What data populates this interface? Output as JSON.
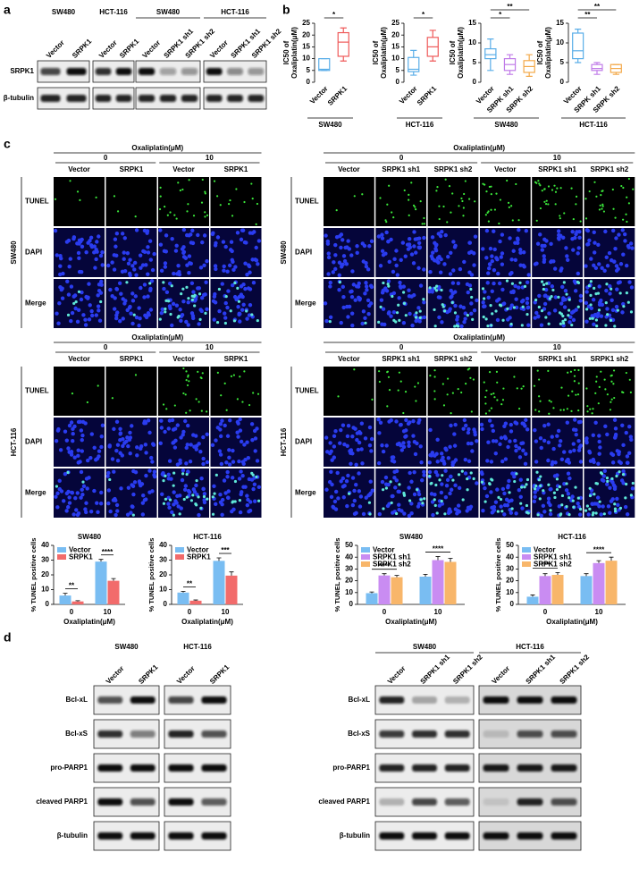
{
  "panels": {
    "panel_a": {
      "label": "a",
      "rows": [
        "SRPK1",
        "β-tubulin"
      ],
      "groups": [
        {
          "name": "SW480",
          "lanes": [
            "Vector",
            "SRPK1"
          ]
        },
        {
          "name": "HCT-116",
          "lanes": [
            "Vector",
            "SRPK1"
          ]
        },
        {
          "name": "SW480",
          "lanes": [
            "Vector",
            "SRPK1 sh1",
            "SRPK1 sh2"
          ]
        },
        {
          "name": "HCT-116",
          "lanes": [
            "Vector",
            "SRPK1 sh1",
            "SRPK1 sh2"
          ]
        }
      ]
    },
    "panel_b": {
      "label": "b"
    },
    "panel_c": {
      "label": "c",
      "microscopy": [
        {
          "side_label": "SW480",
          "header": "Oxaliplatin(μM)",
          "doses": [
            "0",
            "10"
          ],
          "columns": [
            "Vector",
            "SRPK1",
            "Vector",
            "SRPK1"
          ],
          "rows": [
            "TUNEL",
            "DAPI",
            "Merge"
          ]
        },
        {
          "side_label": "SW480",
          "header": "Oxaliplatin(μM)",
          "doses": [
            "0",
            "10"
          ],
          "columns": [
            "Vector",
            "SRPK1 sh1",
            "SRPK1 sh2",
            "Vector",
            "SRPK1 sh1",
            "SRPK1 sh2"
          ],
          "rows": [
            "TUNEL",
            "DAPI",
            "Merge"
          ]
        },
        {
          "side_label": "HCT-116",
          "header": "Oxaliplatin(μM)",
          "doses": [
            "0",
            "10"
          ],
          "columns": [
            "Vector",
            "SRPK1",
            "Vector",
            "SRPK1"
          ],
          "rows": [
            "TUNEL",
            "DAPI",
            "Merge"
          ]
        },
        {
          "side_label": "HCT-116",
          "header": "Oxaliplatin(μM)",
          "doses": [
            "0",
            "10"
          ],
          "columns": [
            "Vector",
            "SRPK1 sh1",
            "SRPK1 sh2",
            "Vector",
            "SRPK1 sh1",
            "SRPK1 sh2"
          ],
          "rows": [
            "TUNEL",
            "DAPI",
            "Merge"
          ]
        }
      ]
    },
    "panel_d": {
      "label": "d",
      "blots": [
        {
          "groups": [
            {
              "name": "SW480",
              "lanes": [
                "Vector",
                "SRPK1"
              ]
            },
            {
              "name": "HCT-116",
              "lanes": [
                "Vector",
                "SRPK1"
              ]
            }
          ],
          "rows": [
            "Bcl-xL",
            "Bcl-xS",
            "pro-PARP1",
            "cleaved PARP1",
            "β-tubulin"
          ]
        },
        {
          "groups": [
            {
              "name": "SW480",
              "lanes": [
                "Vector",
                "SRPK1 sh1",
                "SRPK1 sh2"
              ]
            },
            {
              "name": "HCT-116",
              "lanes": [
                "Vector",
                "SRPK1 sh1",
                "SRPK1 sh2"
              ]
            }
          ],
          "rows": [
            "Bcl-xL",
            "Bcl-xS",
            "pro-PARP1",
            "cleaved PARP1",
            "β-tubulin"
          ]
        }
      ]
    }
  },
  "chart_data": [
    {
      "type": "box",
      "ylabel": [
        "IC50 of",
        "Oxaliplatin(μM)"
      ],
      "categories": [
        "Vector",
        "SRPK1"
      ],
      "group": "SW480",
      "boxes": [
        {
          "color": "#5aaee8",
          "min": 5,
          "q1": 5,
          "median": 5.5,
          "q3": 10,
          "max": 10
        },
        {
          "color": "#ef5a5a",
          "min": 9,
          "q1": 11,
          "median": 17,
          "q3": 21,
          "max": 23
        }
      ],
      "ylim": [
        0,
        25
      ],
      "yticks": [
        0,
        5,
        10,
        15,
        20,
        25
      ],
      "significance": [
        {
          "pair": [
            0,
            1
          ],
          "label": "*"
        }
      ]
    },
    {
      "type": "box",
      "ylabel": [
        "IC50 of",
        "Oxaliplatin(μM)"
      ],
      "categories": [
        "Vector",
        "SRPK1"
      ],
      "group": "HCT-116",
      "boxes": [
        {
          "color": "#5aaee8",
          "min": 3,
          "q1": 4.5,
          "median": 5.5,
          "q3": 10.5,
          "max": 13.5
        },
        {
          "color": "#ef5a5a",
          "min": 9,
          "q1": 11,
          "median": 15,
          "q3": 19,
          "max": 22
        }
      ],
      "ylim": [
        0,
        25
      ],
      "yticks": [
        0,
        5,
        10,
        15,
        20,
        25
      ],
      "significance": [
        {
          "pair": [
            0,
            1
          ],
          "label": "*"
        }
      ]
    },
    {
      "type": "box",
      "ylabel": [
        "IC50 of",
        "Oxaliplatin(μM)"
      ],
      "categories": [
        "Vector",
        "SRPK sh1",
        "SRPK sh2"
      ],
      "group": "SW480",
      "boxes": [
        {
          "color": "#5aaee8",
          "min": 3,
          "q1": 6,
          "median": 7,
          "q3": 8.5,
          "max": 11
        },
        {
          "color": "#c07be8",
          "min": 2,
          "q1": 3,
          "median": 4.5,
          "q3": 6,
          "max": 7
        },
        {
          "color": "#f3a94a",
          "min": 1.5,
          "q1": 2.5,
          "median": 4,
          "q3": 5.5,
          "max": 7
        }
      ],
      "ylim": [
        0,
        15
      ],
      "yticks": [
        0,
        5,
        10,
        15
      ],
      "significance": [
        {
          "pair": [
            0,
            1
          ],
          "label": "*"
        },
        {
          "pair": [
            0,
            2
          ],
          "label": "**"
        }
      ]
    },
    {
      "type": "box",
      "ylabel": [
        "IC50 of",
        "Oxaliplatin(μM)"
      ],
      "categories": [
        "Vector",
        "SRPK sh1",
        "SRPK sh2"
      ],
      "group": "HCT-116",
      "boxes": [
        {
          "color": "#5aaee8",
          "min": 5,
          "q1": 6,
          "median": 8,
          "q3": 12.5,
          "max": 13.5
        },
        {
          "color": "#c07be8",
          "min": 2,
          "q1": 3,
          "median": 3.5,
          "q3": 4.5,
          "max": 5
        },
        {
          "color": "#f3a94a",
          "min": 2,
          "q1": 2.5,
          "median": 3.5,
          "q3": 4.5,
          "max": 4.5
        }
      ],
      "ylim": [
        0,
        15
      ],
      "yticks": [
        0,
        5,
        10,
        15
      ],
      "significance": [
        {
          "pair": [
            0,
            1
          ],
          "label": "**"
        },
        {
          "pair": [
            0,
            2
          ],
          "label": "**"
        }
      ]
    },
    {
      "type": "bar",
      "title": "SW480",
      "ylabel": "% TUNEL positive cells",
      "xlabel": "Oxaliplatin(μM)",
      "categories": [
        "0",
        "10"
      ],
      "series": [
        {
          "name": "Vector",
          "color": "#79bdf2",
          "values": [
            6,
            29
          ],
          "errors": [
            1.5,
            1.5
          ]
        },
        {
          "name": "SRPK1",
          "color": "#f26b6b",
          "values": [
            2,
            16
          ],
          "errors": [
            0.5,
            1.5
          ]
        }
      ],
      "ylim": [
        0,
        40
      ],
      "yticks": [
        0,
        10,
        20,
        30,
        40
      ],
      "legend": "upper-left",
      "significance": [
        {
          "category": 0,
          "label": "**"
        },
        {
          "category": 1,
          "label": "****"
        }
      ]
    },
    {
      "type": "bar",
      "title": "HCT-116",
      "ylabel": "% TUNEL positive cells",
      "xlabel": "Oxaliplatin(μM)",
      "categories": [
        "0",
        "10"
      ],
      "series": [
        {
          "name": "Vector",
          "color": "#79bdf2",
          "values": [
            8,
            29.5
          ],
          "errors": [
            0.8,
            2
          ]
        },
        {
          "name": "SRPK1",
          "color": "#f26b6b",
          "values": [
            2.5,
            19.5
          ],
          "errors": [
            0.5,
            2.5
          ]
        }
      ],
      "ylim": [
        0,
        40
      ],
      "yticks": [
        0,
        10,
        20,
        30,
        40
      ],
      "legend": "upper-left",
      "significance": [
        {
          "category": 0,
          "label": "**"
        },
        {
          "category": 1,
          "label": "***"
        }
      ]
    },
    {
      "type": "bar",
      "title": "SW480",
      "ylabel": "% TUNEL positive cells",
      "xlabel": "Oxaliplatin(μM)",
      "categories": [
        "0",
        "10"
      ],
      "series": [
        {
          "name": "Vector",
          "color": "#79bdf2",
          "values": [
            9.5,
            23.5
          ],
          "errors": [
            1,
            2
          ]
        },
        {
          "name": "SRPK1 sh1",
          "color": "#c98cf2",
          "values": [
            24.5,
            37.5
          ],
          "errors": [
            1.5,
            3
          ]
        },
        {
          "name": "SRPK1 sh2",
          "color": "#f8b66a",
          "values": [
            23,
            36
          ],
          "errors": [
            1.5,
            3
          ]
        }
      ],
      "ylim": [
        0,
        50
      ],
      "yticks": [
        0,
        10,
        20,
        30,
        40,
        50
      ],
      "legend": "upper-left",
      "significance": [
        {
          "category": 0,
          "label": "****"
        },
        {
          "category": 1,
          "label": "****"
        }
      ]
    },
    {
      "type": "bar",
      "title": "HCT-116",
      "ylabel": "% TUNEL positive cells",
      "xlabel": "Oxaliplatin(μM)",
      "categories": [
        "0",
        "10"
      ],
      "series": [
        {
          "name": "Vector",
          "color": "#79bdf2",
          "values": [
            6.5,
            24
          ],
          "errors": [
            1.5,
            2
          ]
        },
        {
          "name": "SRPK1 sh1",
          "color": "#c98cf2",
          "values": [
            24,
            35
          ],
          "errors": [
            2,
            2
          ]
        },
        {
          "name": "SRPK1 sh2",
          "color": "#f8b66a",
          "values": [
            25,
            37
          ],
          "errors": [
            2,
            3
          ]
        }
      ],
      "ylim": [
        0,
        50
      ],
      "yticks": [
        0,
        10,
        20,
        30,
        40,
        50
      ],
      "legend": "upper-left",
      "significance": [
        {
          "category": 0,
          "label": "***"
        },
        {
          "category": 1,
          "label": "****"
        }
      ]
    }
  ]
}
